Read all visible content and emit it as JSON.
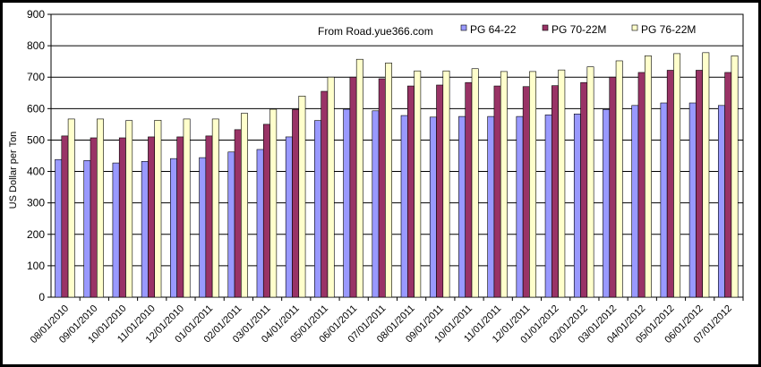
{
  "chart_data": {
    "type": "bar",
    "title": "",
    "xlabel": "",
    "ylabel": "US Dollar per Ton",
    "annotation": "From Road.yue366.com",
    "ylim": [
      0,
      900
    ],
    "yticks": [
      0,
      100,
      200,
      300,
      400,
      500,
      600,
      700,
      800,
      900
    ],
    "grid": true,
    "legend_position": "top-right",
    "categories": [
      "08/01/2010",
      "09/01/2010",
      "10/01/2010",
      "11/01/2010",
      "12/01/2010",
      "01/01/2011",
      "02/01/2011",
      "03/01/2011",
      "04/01/2011",
      "05/01/2011",
      "06/01/2011",
      "07/01/2011",
      "08/01/2011",
      "09/01/2011",
      "10/01/2011",
      "11/01/2011",
      "12/01/2011",
      "01/01/2012",
      "02/01/2012",
      "03/01/2012",
      "04/01/2012",
      "05/01/2012",
      "06/01/2012",
      "07/01/2012"
    ],
    "series": [
      {
        "name": "PG 64-22",
        "color": "#9999FF",
        "values": [
          438,
          435,
          427,
          432,
          441,
          444,
          462,
          470,
          510,
          562,
          598,
          593,
          578,
          573,
          575,
          575,
          575,
          580,
          583,
          597,
          610,
          618,
          618,
          610
        ]
      },
      {
        "name": "PG 70-22M",
        "color": "#993366",
        "values": [
          513,
          507,
          507,
          510,
          510,
          513,
          533,
          550,
          597,
          655,
          700,
          695,
          672,
          675,
          683,
          672,
          670,
          673,
          683,
          700,
          715,
          722,
          722,
          715
        ]
      },
      {
        "name": "PG 76-22M",
        "color": "#FFFFCC",
        "values": [
          567,
          567,
          562,
          563,
          567,
          567,
          585,
          598,
          640,
          700,
          757,
          745,
          720,
          720,
          727,
          718,
          718,
          723,
          733,
          752,
          768,
          775,
          778,
          768
        ]
      }
    ]
  }
}
